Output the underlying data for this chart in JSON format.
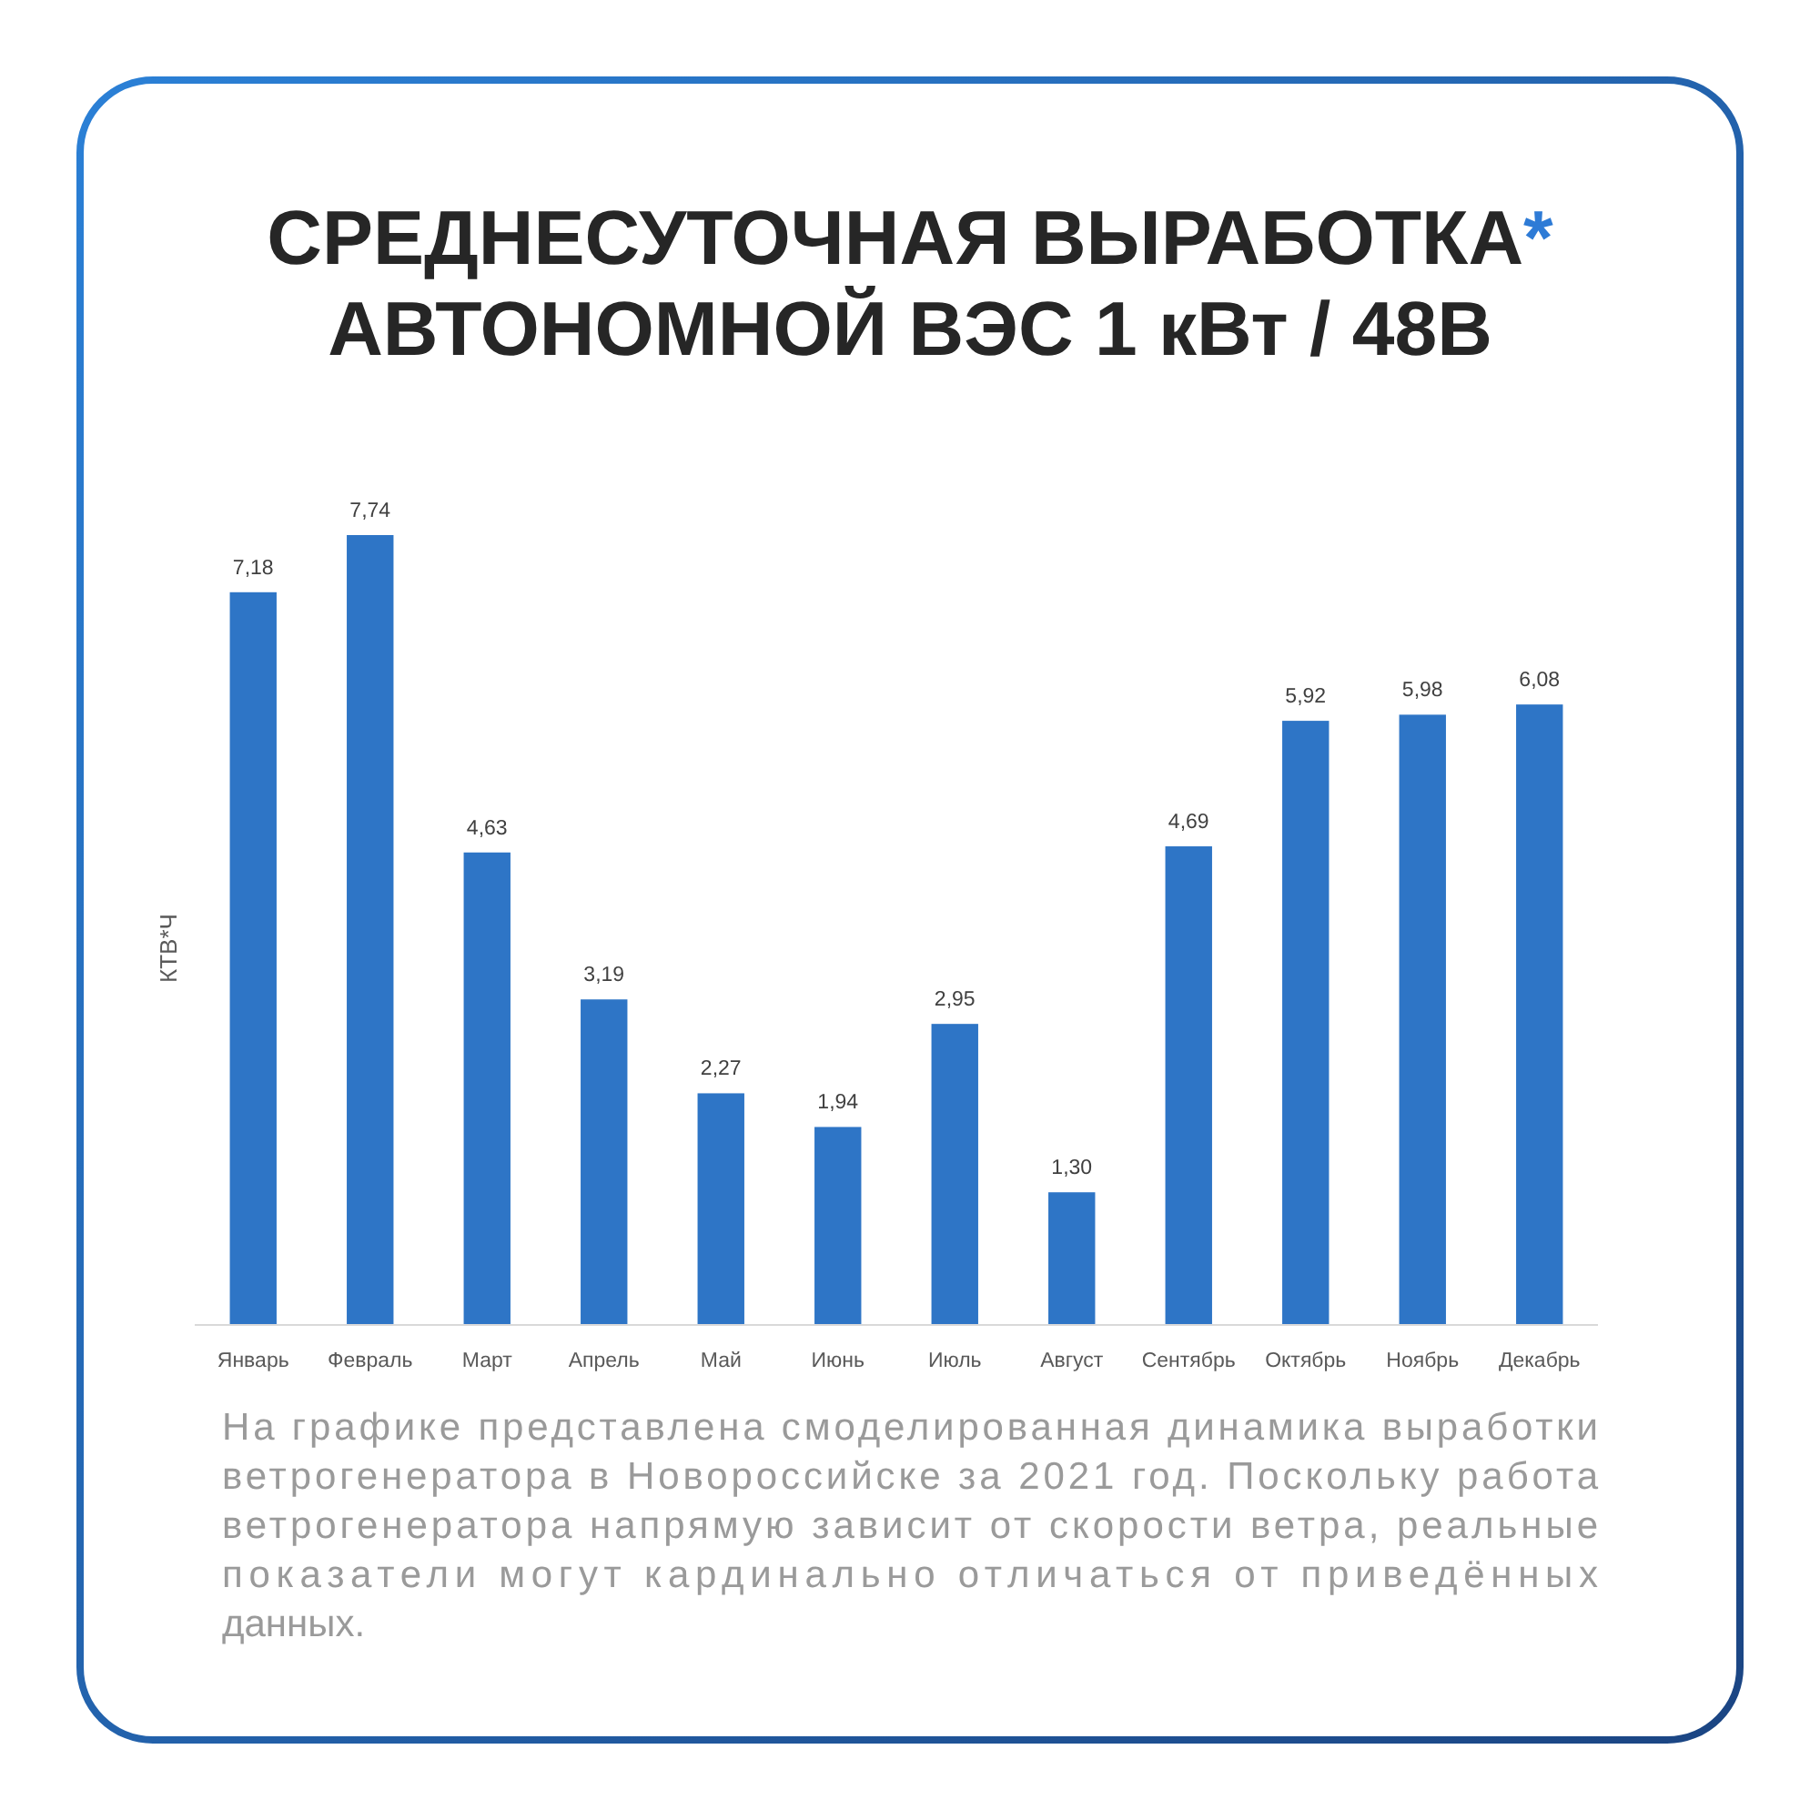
{
  "chart_data": {
    "type": "bar",
    "title": "СРЕДНЕСУТОЧНАЯ ВЫРАБОТКА*\nАВТОНОМНОЙ ВЭС 1 кВт / 48В",
    "ylabel": "КТВ*Ч",
    "categories": [
      "Январь",
      "Февраль",
      "Март",
      "Апрель",
      "Май",
      "Июнь",
      "Июль",
      "Август",
      "Сентябрь",
      "Октябрь",
      "Ноябрь",
      "Декабрь"
    ],
    "values": [
      7.18,
      7.74,
      4.63,
      3.19,
      2.27,
      1.94,
      2.95,
      1.3,
      4.69,
      5.92,
      5.98,
      6.08
    ],
    "value_labels": [
      "7,18",
      "7,74",
      "4,63",
      "3,19",
      "2,27",
      "1,94",
      "2,95",
      "1,30",
      "4,69",
      "5,92",
      "5,98",
      "6,08"
    ],
    "color": "#2e75c6",
    "annotations": [
      "На графике представлена смоделированная динамика выработки ветрогенератора в Новороссийске за 2021 год. Поскольку работа ветрогенератора напрямую зависит от скорости ветра, реальные показатели могут кардинально отличаться от приведённых данных."
    ]
  }
}
